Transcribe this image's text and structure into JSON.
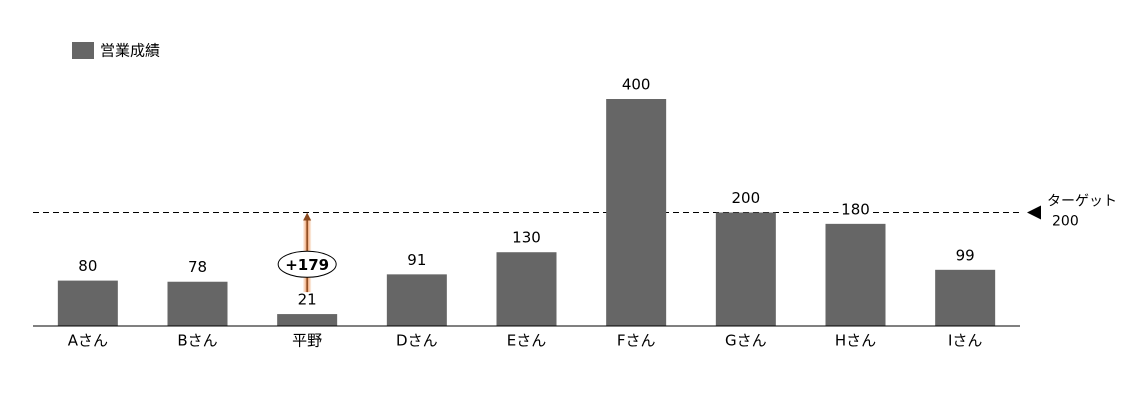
{
  "chart_data": {
    "type": "bar",
    "categories": [
      "Aさん",
      "Bさん",
      "平野",
      "Dさん",
      "Eさん",
      "Fさん",
      "Gさん",
      "Hさん",
      "Iさん"
    ],
    "series": [
      {
        "name": "営業成績",
        "color": "#666666",
        "values": [
          80,
          78,
          21,
          91,
          130,
          400,
          200,
          180,
          99
        ]
      }
    ],
    "ylim": [
      0,
      400
    ],
    "target": {
      "label": "ターゲット",
      "value": 200
    },
    "annotation": "+179"
  }
}
